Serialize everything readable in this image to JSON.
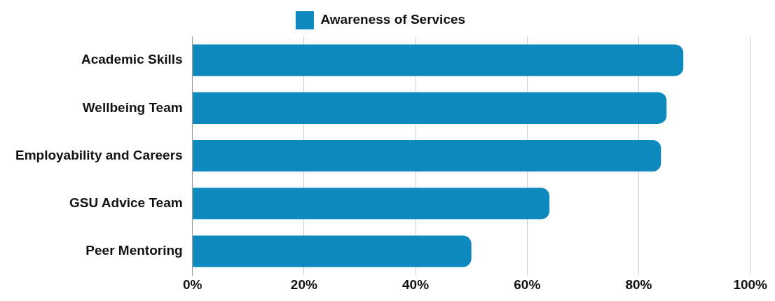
{
  "chart_data": {
    "type": "bar",
    "orientation": "horizontal",
    "categories": [
      "Academic Skills",
      "Wellbeing Team",
      "Employability and Careers",
      "GSU Advice Team",
      "Peer Mentoring"
    ],
    "series": [
      {
        "name": "Awareness of Services",
        "color": "#0d89bd",
        "values": [
          88,
          85,
          84,
          64,
          50
        ]
      }
    ],
    "xlim": [
      0,
      100
    ],
    "xticks": [
      {
        "value": 0,
        "label": "0%"
      },
      {
        "value": 20,
        "label": "20%"
      },
      {
        "value": 40,
        "label": "40%"
      },
      {
        "value": 60,
        "label": "60%"
      },
      {
        "value": 80,
        "label": "80%"
      },
      {
        "value": 100,
        "label": "100%"
      }
    ],
    "grid": "x",
    "legend": "top"
  }
}
